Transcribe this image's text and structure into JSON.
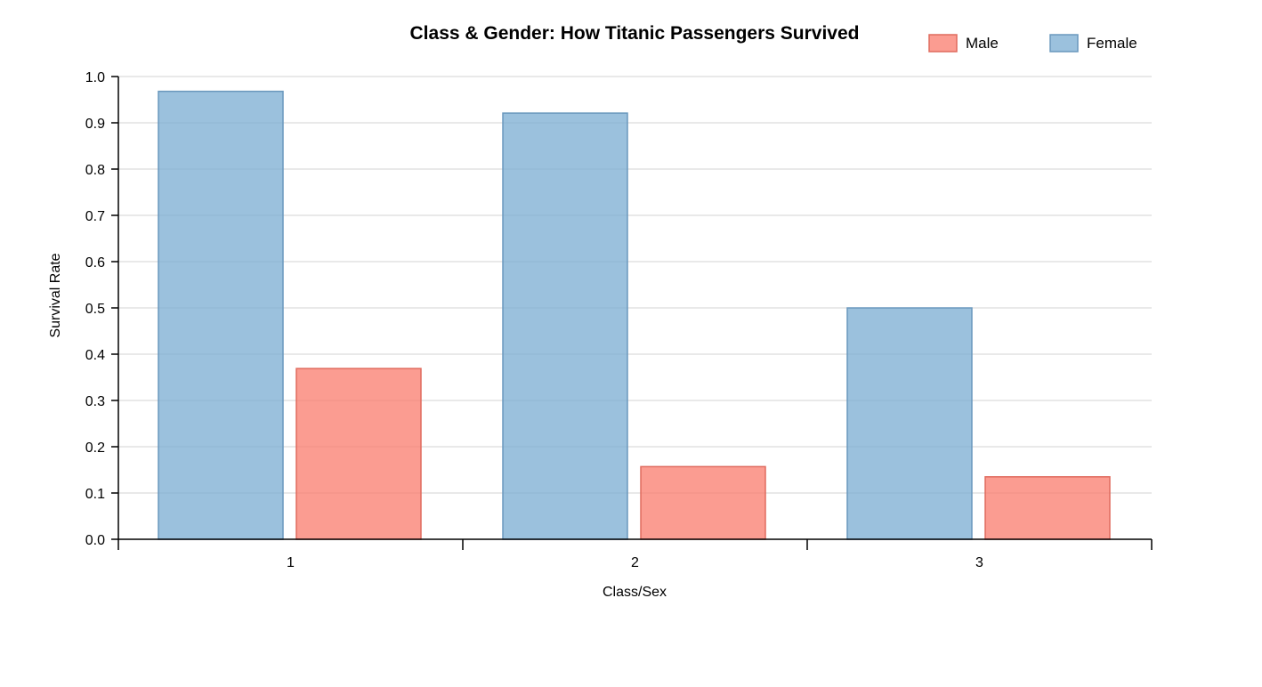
{
  "chart_data": {
    "type": "bar",
    "title": "Class & Gender: How Titanic Passengers Survived",
    "xlabel": "Class/Sex",
    "ylabel": "Survival Rate",
    "categories": [
      "1",
      "2",
      "3"
    ],
    "series": [
      {
        "name": "Female",
        "values": [
          0.968,
          0.921,
          0.5
        ],
        "color": "#7fb0d3"
      },
      {
        "name": "Male",
        "values": [
          0.369,
          0.157,
          0.135
        ],
        "color": "#fa8072"
      }
    ],
    "ylim": [
      0,
      1.0
    ],
    "yticks": [
      "0.0",
      "0.1",
      "0.2",
      "0.3",
      "0.4",
      "0.5",
      "0.6",
      "0.7",
      "0.8",
      "0.9",
      "1.0"
    ],
    "legend": {
      "placement": "top-right",
      "order": [
        "Male",
        "Female"
      ]
    },
    "grid": true
  }
}
